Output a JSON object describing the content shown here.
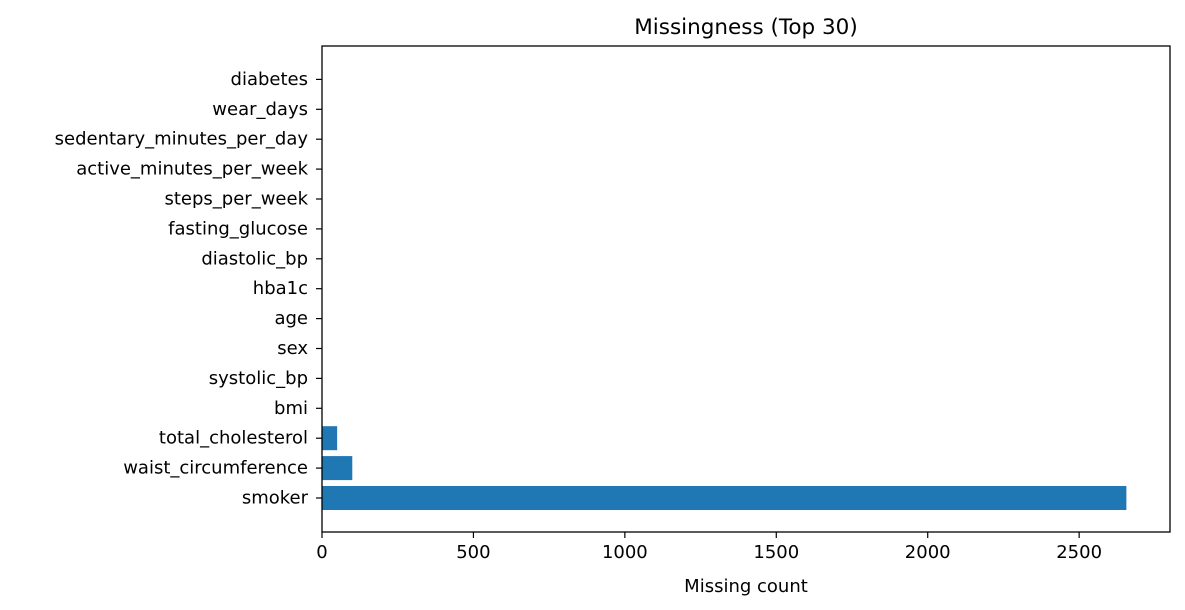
{
  "chart_data": {
    "type": "bar",
    "orientation": "horizontal",
    "title": "Missingness (Top 30)",
    "xlabel": "Missing count",
    "ylabel": "",
    "xlim": [
      0,
      2800
    ],
    "xticks": [
      0,
      500,
      1000,
      1500,
      2000,
      2500
    ],
    "grid": false,
    "bar_color": "#1f77b4",
    "categories": [
      "smoker",
      "waist_circumference",
      "total_cholesterol",
      "bmi",
      "systolic_bp",
      "sex",
      "age",
      "hba1c",
      "diastolic_bp",
      "fasting_glucose",
      "steps_per_week",
      "active_minutes_per_week",
      "sedentary_minutes_per_day",
      "wear_days",
      "diabetes"
    ],
    "values": [
      2656,
      100,
      50,
      0,
      0,
      0,
      0,
      0,
      0,
      0,
      0,
      0,
      0,
      0,
      0
    ]
  }
}
